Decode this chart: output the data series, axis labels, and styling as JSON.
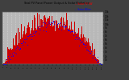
{
  "title": "Total PV Panel Power Output & Solar Radiation",
  "bg_color": "#404040",
  "plot_bg_color": "#b8b8b8",
  "bar_color": "#cc0000",
  "dot_color": "#0000ff",
  "grid_color": "#dddddd",
  "ylim": [
    0,
    13000
  ],
  "n_bars": 150,
  "right_yticks": [
    1000,
    2000,
    3000,
    4000,
    5000,
    6000,
    7000,
    8000,
    9000,
    10000,
    11000,
    12000,
    13000
  ],
  "right_yticklabels": [
    "1k",
    "2k",
    "3k",
    "4k",
    "5k",
    "6k",
    "7k",
    "8k",
    "9k",
    "10k",
    "11k",
    "12k",
    "13k"
  ],
  "legend_pv_color": "#ff0000",
  "legend_rad_color": "#0000ff",
  "legend_pv": "-- Solar PV kW",
  "legend_rad": "-- Solar W/m²"
}
